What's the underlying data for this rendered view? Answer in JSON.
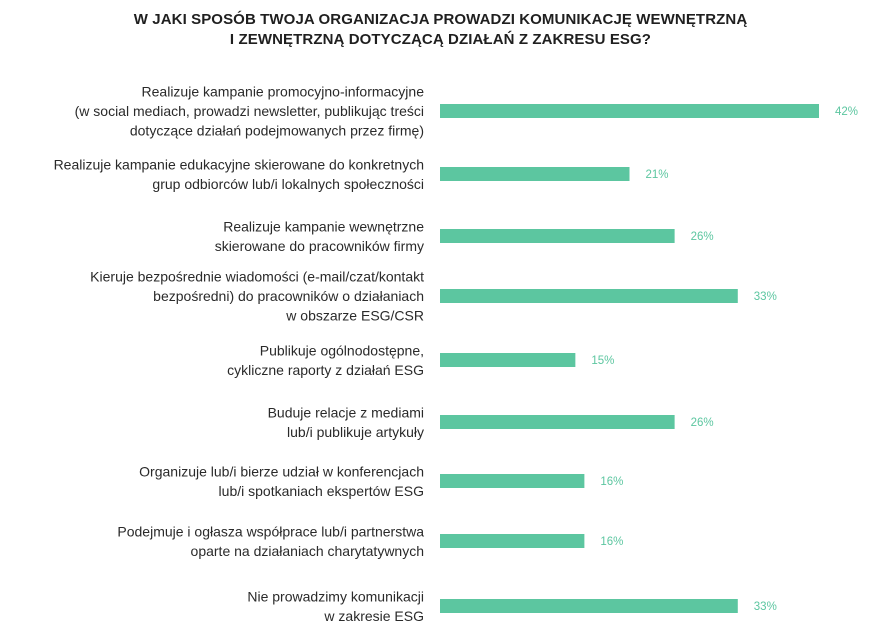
{
  "chart_data": {
    "type": "bar",
    "orientation": "horizontal",
    "title_lines": [
      "W JAKI SPOSÓB TWOJA ORGANIZACJA PROWADZI KOMUNIKACJĘ WEWNĘTRZNĄ",
      "I ZEWNĘTRZNĄ DOTYCZĄCĄ DZIAŁAŃ Z ZAKRESU ESG?"
    ],
    "categories": [
      [
        "Realizuje kampanie promocyjno-informacyjne",
        "(w social mediach, prowadzi newsletter, publikując treści",
        "dotyczące działań podejmowanych przez firmę)"
      ],
      [
        "Realizuje kampanie edukacyjne skierowane do konkretnych",
        "grup odbiorców lub/i lokalnych społeczności"
      ],
      [
        "Realizuje kampanie wewnętrzne",
        "skierowane do pracowników firmy"
      ],
      [
        "Kieruje bezpośrednie wiadomości (e-mail/czat/kontakt",
        "bezpośredni) do pracowników o działaniach",
        "w obszarze ESG/CSR"
      ],
      [
        "Publikuje ogólnodostępne,",
        "cykliczne raporty z działań ESG"
      ],
      [
        "Buduje relacje z mediami",
        "lub/i publikuje artykuły"
      ],
      [
        "Organizuje lub/i bierze udział w konferencjach",
        "lub/i spotkaniach ekspertów ESG"
      ],
      [
        "Podejmuje i ogłasza współprace lub/i partnerstwa",
        "oparte na działaniach charytatywnych"
      ],
      [
        "Nie prowadzimy komunikacji",
        "w zakresie ESG"
      ]
    ],
    "values": [
      42,
      21,
      26,
      33,
      15,
      26,
      16,
      16,
      33
    ],
    "value_labels": [
      "42%",
      "21%",
      "26%",
      "33%",
      "15%",
      "26%",
      "16%",
      "16%",
      "33%"
    ],
    "unit": "%",
    "grid": false,
    "legend": "none",
    "colors": {
      "bar": "#5cc6a0",
      "value_label": "#5cc6a0",
      "text": "#2a2a2a"
    }
  }
}
